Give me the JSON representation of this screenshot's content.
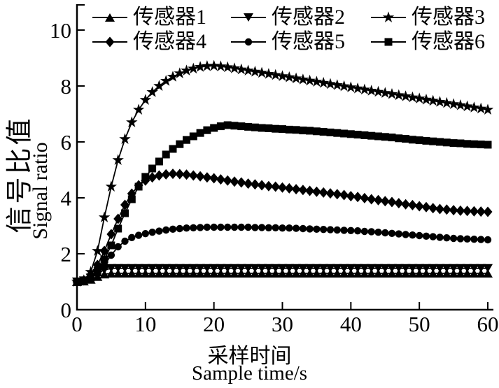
{
  "figure": {
    "background": "#ffffff",
    "ink_color": "#000000"
  },
  "chart_data": {
    "type": "line",
    "title": "",
    "xlabel_zh": "采样时间",
    "xlabel_en": "Sample time/s",
    "ylabel_zh": "信号比值",
    "ylabel_en": "Signal ratio",
    "xlim": [
      0,
      60
    ],
    "ylim": [
      0,
      10.9
    ],
    "x_ticks": [
      0,
      10,
      20,
      30,
      40,
      50,
      60
    ],
    "y_ticks": [
      0,
      2,
      4,
      6,
      8,
      10
    ],
    "grid": false,
    "legend_position": "top-inside-two-rows",
    "x_start": 0,
    "x_step": 1,
    "series": [
      {
        "name": "传感器1",
        "marker": "triangle-up",
        "values": [
          1.0,
          1.02,
          1.08,
          1.18,
          1.27,
          1.3,
          1.3,
          1.3,
          1.3,
          1.3,
          1.3,
          1.3,
          1.3,
          1.3,
          1.3,
          1.3,
          1.3,
          1.3,
          1.3,
          1.3,
          1.3,
          1.3,
          1.3,
          1.3,
          1.3,
          1.3,
          1.3,
          1.3,
          1.3,
          1.3,
          1.3,
          1.3,
          1.3,
          1.3,
          1.3,
          1.3,
          1.3,
          1.3,
          1.3,
          1.3,
          1.3,
          1.3,
          1.3,
          1.3,
          1.3,
          1.3,
          1.3,
          1.3,
          1.3,
          1.3,
          1.3,
          1.3,
          1.3,
          1.3,
          1.3,
          1.3,
          1.3,
          1.3,
          1.3,
          1.3,
          1.3
        ]
      },
      {
        "name": "传感器2",
        "marker": "triangle-down",
        "values": [
          1.0,
          1.04,
          1.14,
          1.3,
          1.42,
          1.48,
          1.48,
          1.48,
          1.48,
          1.48,
          1.48,
          1.48,
          1.48,
          1.48,
          1.48,
          1.48,
          1.48,
          1.48,
          1.48,
          1.48,
          1.48,
          1.48,
          1.48,
          1.48,
          1.48,
          1.48,
          1.48,
          1.48,
          1.48,
          1.48,
          1.48,
          1.48,
          1.48,
          1.48,
          1.48,
          1.48,
          1.48,
          1.48,
          1.48,
          1.48,
          1.48,
          1.48,
          1.48,
          1.48,
          1.48,
          1.48,
          1.48,
          1.48,
          1.48,
          1.48,
          1.48,
          1.48,
          1.48,
          1.48,
          1.48,
          1.48,
          1.48,
          1.48,
          1.48,
          1.48,
          1.48
        ]
      },
      {
        "name": "传感器3",
        "marker": "star",
        "values": [
          1.0,
          1.05,
          1.35,
          2.1,
          3.3,
          4.4,
          5.35,
          6.1,
          6.7,
          7.15,
          7.5,
          7.78,
          8.0,
          8.18,
          8.33,
          8.45,
          8.55,
          8.62,
          8.68,
          8.71,
          8.72,
          8.7,
          8.67,
          8.63,
          8.59,
          8.55,
          8.51,
          8.47,
          8.43,
          8.39,
          8.35,
          8.31,
          8.27,
          8.23,
          8.19,
          8.15,
          8.11,
          8.07,
          8.03,
          7.99,
          7.95,
          7.91,
          7.87,
          7.83,
          7.79,
          7.75,
          7.71,
          7.67,
          7.63,
          7.59,
          7.55,
          7.51,
          7.47,
          7.43,
          7.39,
          7.35,
          7.31,
          7.27,
          7.23,
          7.19,
          7.15
        ]
      },
      {
        "name": "传感器4",
        "marker": "diamond",
        "values": [
          1.0,
          1.05,
          1.25,
          1.6,
          2.1,
          2.7,
          3.25,
          3.75,
          4.15,
          4.45,
          4.62,
          4.73,
          4.8,
          4.84,
          4.86,
          4.85,
          4.83,
          4.8,
          4.77,
          4.73,
          4.7,
          4.66,
          4.62,
          4.58,
          4.55,
          4.51,
          4.48,
          4.45,
          4.42,
          4.4,
          4.37,
          4.34,
          4.31,
          4.28,
          4.25,
          4.22,
          4.19,
          4.16,
          4.13,
          4.1,
          4.06,
          4.03,
          3.99,
          3.95,
          3.92,
          3.88,
          3.85,
          3.81,
          3.77,
          3.74,
          3.7,
          3.67,
          3.63,
          3.6,
          3.58,
          3.56,
          3.54,
          3.53,
          3.52,
          3.51,
          3.5
        ]
      },
      {
        "name": "传感器5",
        "marker": "circle",
        "values": [
          1.0,
          1.03,
          1.1,
          1.3,
          1.6,
          1.95,
          2.25,
          2.45,
          2.58,
          2.66,
          2.72,
          2.77,
          2.81,
          2.85,
          2.88,
          2.9,
          2.92,
          2.93,
          2.94,
          2.95,
          2.95,
          2.95,
          2.95,
          2.95,
          2.95,
          2.95,
          2.94,
          2.94,
          2.93,
          2.93,
          2.92,
          2.92,
          2.91,
          2.9,
          2.89,
          2.88,
          2.87,
          2.86,
          2.85,
          2.84,
          2.83,
          2.82,
          2.8,
          2.79,
          2.77,
          2.75,
          2.73,
          2.71,
          2.69,
          2.67,
          2.65,
          2.63,
          2.61,
          2.59,
          2.57,
          2.55,
          2.54,
          2.53,
          2.52,
          2.51,
          2.5
        ]
      },
      {
        "name": "传感器6",
        "marker": "square",
        "values": [
          1.0,
          1.03,
          1.15,
          1.4,
          1.8,
          2.3,
          2.9,
          3.45,
          3.95,
          4.4,
          4.75,
          5.05,
          5.3,
          5.55,
          5.75,
          5.92,
          6.07,
          6.2,
          6.32,
          6.42,
          6.5,
          6.56,
          6.6,
          6.58,
          6.56,
          6.54,
          6.52,
          6.5,
          6.49,
          6.47,
          6.46,
          6.44,
          6.43,
          6.41,
          6.4,
          6.38,
          6.36,
          6.34,
          6.32,
          6.3,
          6.28,
          6.26,
          6.24,
          6.22,
          6.2,
          6.18,
          6.16,
          6.13,
          6.11,
          6.08,
          6.06,
          6.04,
          6.02,
          6.0,
          5.98,
          5.96,
          5.95,
          5.93,
          5.92,
          5.91,
          5.9
        ]
      }
    ]
  }
}
